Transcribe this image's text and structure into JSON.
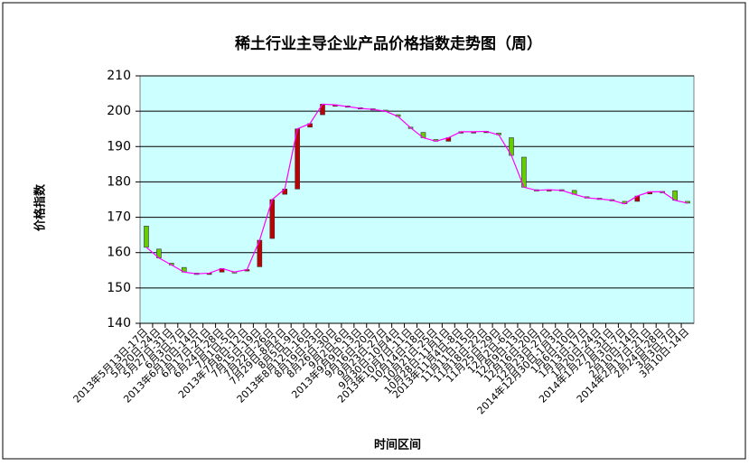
{
  "chart_data": {
    "type": "candlestick",
    "title": "稀土行业主导企业产品价格指数走势图（周）",
    "x_label": "时间区间",
    "y_label": "价格指数",
    "categories": [
      "2013年5月13日-17日",
      "5月20日-24日",
      "5月27日-31日",
      "6月3日-7日",
      "2013年6月10日-14日",
      "6月17日-21日",
      "6月24日-28日",
      "7月1日-5日",
      "2013年7月8日-12日",
      "7月15日-19日",
      "7月22日-26日",
      "7月29日-8月2日",
      "8月5日-9日",
      "2013年8月12日-16日",
      "8月19日-23日",
      "8月26日-30日",
      "9月2日-6日",
      "2013年9月9日-13日",
      "9月16日-20日",
      "9月23日-27日",
      "9月30日-10月4日",
      "2013年10月7日-11日",
      "10月14日-18日",
      "10月21日-25日",
      "10月28日-11月1日",
      "2013年11月4日-8日",
      "11月11日-15日",
      "11月18日-22日",
      "11月25日-29日",
      "12月2日-6日",
      "12月9日-13日",
      "12月16日-20日",
      "12月23日-27日",
      "2014年12月30日-1月3日",
      "1月6日-10日",
      "1月13日-17日",
      "1月20日-24日",
      "2014年1月27日-31日",
      "2月3日-7日",
      "2月10日-14日",
      "2014年2月17日-21日",
      "2月24日-28日",
      "3月3日-7日",
      "3月10日-14日"
    ],
    "open": [
      167.5,
      161,
      157,
      155.8,
      154.2,
      154,
      154.5,
      154.6,
      154.8,
      156,
      164,
      176.5,
      178,
      195.5,
      199,
      201.5,
      201.5,
      201,
      200.7,
      200.3,
      199,
      195.5,
      194,
      192,
      191.5,
      193.8,
      194,
      194,
      193.8,
      192.5,
      187,
      177.8,
      177.8,
      177.8,
      177.6,
      175.8,
      175.4,
      175,
      174.5,
      174.5,
      176.6,
      177.3,
      177.5,
      174.5
    ],
    "close": [
      161.5,
      158.5,
      156.5,
      154.5,
      154,
      154.2,
      155.5,
      154.5,
      155.2,
      163.5,
      175,
      178,
      195,
      196.5,
      202,
      201.8,
      201.3,
      200.8,
      200.5,
      200,
      198.5,
      195.3,
      192.5,
      191.5,
      192.5,
      194.2,
      194.2,
      194.3,
      193.3,
      187.5,
      178.5,
      177.6,
      177.8,
      177.6,
      176.5,
      175.5,
      175.2,
      174.8,
      173.8,
      176,
      177.2,
      177.2,
      174.8,
      174
    ],
    "up_color": "#c00000",
    "down_color": "#66cc00",
    "line_color": "#ff00ff",
    "ylim": [
      140,
      210
    ],
    "yticks": [
      140,
      150,
      160,
      170,
      180,
      190,
      200,
      210
    ],
    "grid": true
  }
}
